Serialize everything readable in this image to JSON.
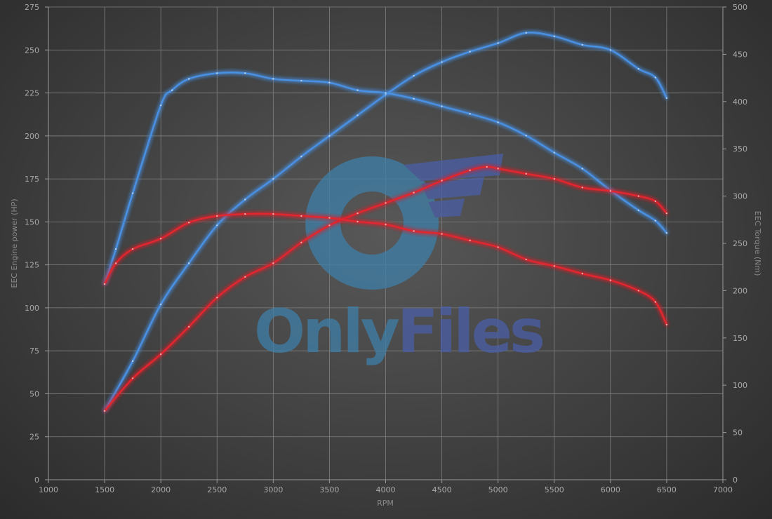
{
  "chart_data": {
    "type": "line",
    "title": "",
    "xlabel": "RPM",
    "ylabel_left": "EEC Engine power (HP)",
    "ylabel_right": "EEC Torque (Nm)",
    "xlim": [
      1000,
      7000
    ],
    "ylim_left": [
      0,
      275
    ],
    "ylim_right": [
      0,
      500
    ],
    "x_ticks": [
      1000,
      1500,
      2000,
      2500,
      3000,
      3500,
      4000,
      4500,
      5000,
      5500,
      6000,
      6500,
      7000
    ],
    "y_ticks_left": [
      0,
      25,
      50,
      75,
      100,
      125,
      150,
      175,
      200,
      225,
      250,
      275
    ],
    "y_ticks_right": [
      0,
      50,
      100,
      150,
      200,
      250,
      300,
      350,
      400,
      450,
      500
    ],
    "grid": true,
    "colors": {
      "blue": "#4a90e2",
      "red": "#e0282e"
    },
    "series": [
      {
        "color": "blue",
        "axis": "left",
        "x": [
          1500,
          1750,
          2000,
          2250,
          2500,
          2750,
          3000,
          3250,
          3500,
          3750,
          4000,
          4250,
          4500,
          4750,
          5000,
          5250,
          5500,
          5750,
          6000,
          6250,
          6400,
          6500
        ],
        "y": [
          40,
          69,
          102,
          126,
          148,
          163,
          175,
          188,
          200,
          212,
          224,
          235,
          243,
          249,
          254,
          260,
          258,
          253,
          250,
          239,
          234,
          222
        ]
      },
      {
        "color": "blue",
        "axis": "right",
        "x": [
          1500,
          1600,
          1750,
          2000,
          2100,
          2250,
          2500,
          2750,
          3000,
          3250,
          3500,
          3750,
          4000,
          4250,
          4500,
          4750,
          5000,
          5250,
          5500,
          5750,
          6000,
          6250,
          6400,
          6500
        ],
        "y": [
          207,
          244,
          303,
          396,
          412,
          424,
          430,
          430,
          424,
          422,
          420,
          412,
          409,
          403,
          395,
          387,
          378,
          364,
          346,
          329,
          306,
          285,
          274,
          261
        ]
      },
      {
        "color": "red",
        "axis": "left",
        "x": [
          1500,
          1750,
          2000,
          2250,
          2500,
          2750,
          3000,
          3250,
          3500,
          3750,
          4000,
          4250,
          4500,
          4750,
          4900,
          5000,
          5250,
          5500,
          5750,
          6000,
          6250,
          6400,
          6500
        ],
        "y": [
          40,
          59,
          73,
          89,
          106,
          118,
          126,
          138,
          148,
          155,
          161,
          167,
          174,
          180,
          182,
          181,
          178,
          175,
          170,
          168,
          165,
          162,
          155
        ]
      },
      {
        "color": "red",
        "axis": "right",
        "x": [
          1500,
          1600,
          1750,
          2000,
          2250,
          2500,
          2750,
          3000,
          3250,
          3500,
          3750,
          4000,
          4250,
          4500,
          4750,
          5000,
          5250,
          5500,
          5750,
          6000,
          6250,
          6400,
          6500
        ],
        "y": [
          207,
          229,
          244,
          255,
          272,
          279,
          281,
          281,
          279,
          277,
          273,
          270,
          263,
          260,
          253,
          246,
          233,
          226,
          218,
          211,
          200,
          188,
          164
        ]
      }
    ]
  },
  "watermark": {
    "text": "OnlyFiles",
    "colors": {
      "only": "#3f7fa8",
      "files": "#4a5fa8"
    }
  }
}
